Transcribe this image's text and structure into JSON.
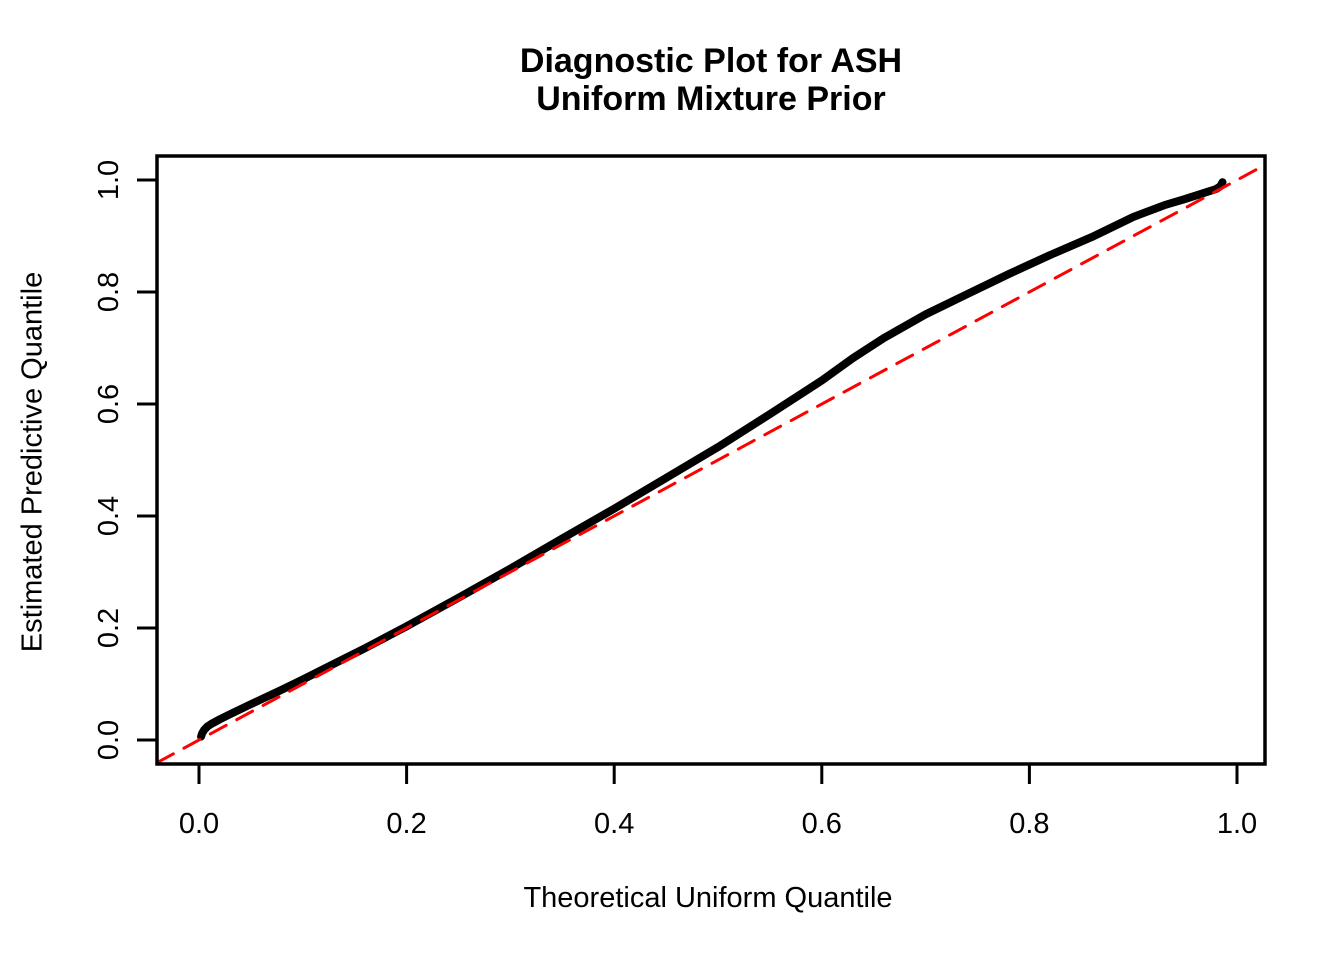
{
  "title_lines": [
    "Diagnostic Plot for ASH",
    "Uniform Mixture Prior"
  ],
  "colors": {
    "background": "#FFFFFF",
    "axis": "#000000",
    "curve": "#000000",
    "reference_line": "#FF0000"
  },
  "chart_data": {
    "type": "line",
    "title": "Diagnostic Plot for ASH\nUniform Mixture Prior",
    "xlabel": "Theoretical Uniform Quantile",
    "ylabel": "Estimated Predictive Quantile",
    "xlim": [
      -0.04,
      1.04
    ],
    "ylim": [
      -0.04,
      1.04
    ],
    "grid": false,
    "legend_position": "none",
    "x_ticks": [
      0.0,
      0.2,
      0.4,
      0.6,
      0.8,
      1.0
    ],
    "y_ticks": [
      0.0,
      0.2,
      0.4,
      0.6,
      0.8,
      1.0
    ],
    "x_tick_labels": [
      "0.0",
      "0.2",
      "0.4",
      "0.6",
      "0.8",
      "1.0"
    ],
    "y_tick_labels": [
      "0.0",
      "0.2",
      "0.4",
      "0.6",
      "0.8",
      "1.0"
    ],
    "series": [
      {
        "name": "estimated-predictive-quantile-curve",
        "color": "#000000",
        "width": 8,
        "dash": null,
        "points": [
          [
            0.002,
            0.006
          ],
          [
            0.003,
            0.012
          ],
          [
            0.005,
            0.018
          ],
          [
            0.008,
            0.024
          ],
          [
            0.012,
            0.029
          ],
          [
            0.02,
            0.037
          ],
          [
            0.03,
            0.046
          ],
          [
            0.05,
            0.064
          ],
          [
            0.08,
            0.09
          ],
          [
            0.1,
            0.108
          ],
          [
            0.13,
            0.136
          ],
          [
            0.16,
            0.164
          ],
          [
            0.2,
            0.203
          ],
          [
            0.25,
            0.254
          ],
          [
            0.3,
            0.306
          ],
          [
            0.35,
            0.36
          ],
          [
            0.4,
            0.413
          ],
          [
            0.45,
            0.468
          ],
          [
            0.5,
            0.523
          ],
          [
            0.55,
            0.582
          ],
          [
            0.6,
            0.642
          ],
          [
            0.63,
            0.682
          ],
          [
            0.66,
            0.718
          ],
          [
            0.7,
            0.76
          ],
          [
            0.74,
            0.796
          ],
          [
            0.78,
            0.832
          ],
          [
            0.82,
            0.866
          ],
          [
            0.86,
            0.898
          ],
          [
            0.9,
            0.934
          ],
          [
            0.93,
            0.955
          ],
          [
            0.95,
            0.966
          ],
          [
            0.97,
            0.978
          ],
          [
            0.98,
            0.984
          ],
          [
            0.984,
            0.989
          ],
          [
            0.986,
            0.996
          ]
        ]
      },
      {
        "name": "reference-diagonal-y-equals-x",
        "color": "#FF0000",
        "width": 3,
        "dash": [
          18,
          12
        ],
        "points": [
          [
            -0.04,
            -0.04
          ],
          [
            1.027,
            1.027
          ]
        ]
      }
    ]
  }
}
